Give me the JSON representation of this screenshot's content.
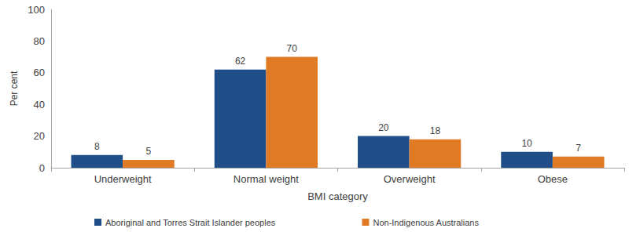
{
  "chart_data": {
    "type": "bar",
    "x_label": "BMI category",
    "y_label": "Per cent",
    "categories": [
      "Underweight",
      "Normal weight",
      "Overweight",
      "Obese"
    ],
    "series": [
      {
        "name": "Aboriginal and Torres Strait Islander peoples",
        "color": "#1f4e89",
        "values": [
          8,
          62,
          20,
          10
        ]
      },
      {
        "name": "Non-Indigenous Australians",
        "color": "#e07a24",
        "values": [
          5,
          70,
          18,
          7
        ]
      }
    ],
    "ylim": [
      0,
      100
    ],
    "yticks": [
      0,
      20,
      40,
      60,
      80,
      100
    ],
    "grid": false,
    "data_labels": true,
    "legend": "bottom"
  }
}
